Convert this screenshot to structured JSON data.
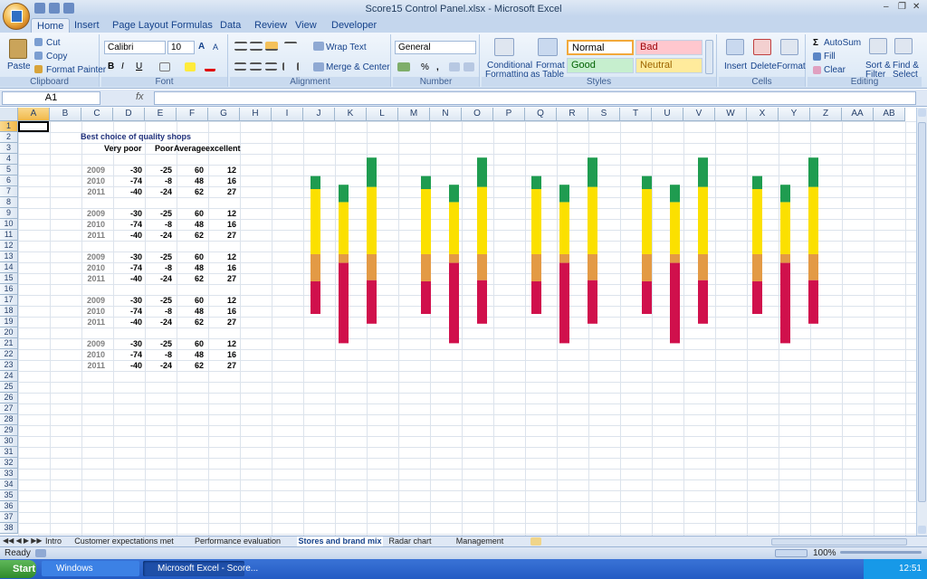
{
  "window": {
    "title": "Score15 Control Panel.xlsx - Microsoft Excel"
  },
  "ribbon_tabs": [
    "Home",
    "Insert",
    "Page Layout",
    "Formulas",
    "Data",
    "Review",
    "View",
    "Developer"
  ],
  "clipboard": {
    "paste": "Paste",
    "cut": "Cut",
    "copy": "Copy",
    "format_painter": "Format Painter",
    "group": "Clipboard"
  },
  "font": {
    "name": "Calibri",
    "size": "10",
    "bold": "B",
    "italic": "I",
    "underline": "U",
    "group": "Font"
  },
  "alignment": {
    "wrap": "Wrap Text",
    "merge": "Merge & Center",
    "group": "Alignment"
  },
  "number": {
    "format": "General",
    "percent": "%",
    "comma": ",",
    "group": "Number"
  },
  "styles": {
    "conditional": "Conditional",
    "conditional2": "Formatting",
    "format_table": "Format",
    "format_table2": "as Table",
    "normal": "Normal",
    "bad": "Bad",
    "good": "Good",
    "neutral": "Neutral",
    "group": "Styles"
  },
  "cells": {
    "insert": "Insert",
    "delete": "Delete",
    "format": "Format",
    "group": "Cells"
  },
  "editing": {
    "autosum": "AutoSum",
    "fill": "Fill",
    "clear": "Clear",
    "sort": "Sort &",
    "sort2": "Filter",
    "find": "Find &",
    "find2": "Select",
    "group": "Editing"
  },
  "formula_bar": {
    "cell_ref": "A1",
    "fx": "fx",
    "value": ""
  },
  "columns": [
    "A",
    "B",
    "C",
    "D",
    "E",
    "F",
    "G",
    "H",
    "I",
    "J",
    "K",
    "L",
    "M",
    "N",
    "O",
    "P",
    "Q",
    "R",
    "S",
    "T",
    "U",
    "V",
    "W",
    "X",
    "Y",
    "Z",
    "AA",
    "AB"
  ],
  "rows": [
    "1",
    "2",
    "3",
    "4",
    "5",
    "6",
    "7",
    "8",
    "9",
    "10",
    "11",
    "12",
    "13",
    "14",
    "15",
    "16",
    "17",
    "18",
    "19",
    "20",
    "21",
    "22",
    "23",
    "24",
    "25",
    "26",
    "27",
    "28",
    "29",
    "30",
    "31",
    "32",
    "33",
    "34",
    "35",
    "36",
    "37",
    "38"
  ],
  "sheet": {
    "title": "Best choice of quality shops",
    "headers": [
      "Very poor",
      "Poor",
      "Average",
      "excellent"
    ],
    "blocks": [
      [
        {
          "year": "2009",
          "v": [
            "-30",
            "-25",
            "60",
            "12"
          ]
        },
        {
          "year": "2010",
          "v": [
            "-74",
            "-8",
            "48",
            "16"
          ]
        },
        {
          "year": "2011",
          "v": [
            "-40",
            "-24",
            "62",
            "27"
          ]
        }
      ],
      [
        {
          "year": "2009",
          "v": [
            "-30",
            "-25",
            "60",
            "12"
          ]
        },
        {
          "year": "2010",
          "v": [
            "-74",
            "-8",
            "48",
            "16"
          ]
        },
        {
          "year": "2011",
          "v": [
            "-40",
            "-24",
            "62",
            "27"
          ]
        }
      ],
      [
        {
          "year": "2009",
          "v": [
            "-30",
            "-25",
            "60",
            "12"
          ]
        },
        {
          "year": "2010",
          "v": [
            "-74",
            "-8",
            "48",
            "16"
          ]
        },
        {
          "year": "2011",
          "v": [
            "-40",
            "-24",
            "62",
            "27"
          ]
        }
      ],
      [
        {
          "year": "2009",
          "v": [
            "-30",
            "-25",
            "60",
            "12"
          ]
        },
        {
          "year": "2010",
          "v": [
            "-74",
            "-8",
            "48",
            "16"
          ]
        },
        {
          "year": "2011",
          "v": [
            "-40",
            "-24",
            "62",
            "27"
          ]
        }
      ],
      [
        {
          "year": "2009",
          "v": [
            "-30",
            "-25",
            "60",
            "12"
          ]
        },
        {
          "year": "2010",
          "v": [
            "-74",
            "-8",
            "48",
            "16"
          ]
        },
        {
          "year": "2011",
          "v": [
            "-40",
            "-24",
            "62",
            "27"
          ]
        }
      ]
    ]
  },
  "chart_data": {
    "type": "bar",
    "categories": [
      "2009",
      "2010",
      "2011"
    ],
    "series": [
      {
        "values": [
          -30,
          -74,
          -40
        ]
      },
      {
        "values": [
          -25,
          -8,
          -24
        ]
      },
      {
        "values": [
          60,
          48,
          62
        ]
      },
      {
        "values": [
          12,
          16,
          27
        ]
      }
    ],
    "colors": [
      "#d0104c",
      "#e39a45",
      "#fbe000",
      "#1f9c50"
    ],
    "repeat": 5
  },
  "sheet_tabs": [
    "Intro",
    "Customer expectations met",
    "Performance evaluation map",
    "Stores and brand mix",
    "Radar chart",
    "Management agenda"
  ],
  "active_sheet": "Stores and brand mix",
  "status": {
    "ready": "Ready",
    "zoom": "100%"
  },
  "taskbar": {
    "start": "Start",
    "task1": "Windows",
    "task2": "Microsoft Excel - Score...",
    "lang": "EN",
    "time": "12:51"
  }
}
